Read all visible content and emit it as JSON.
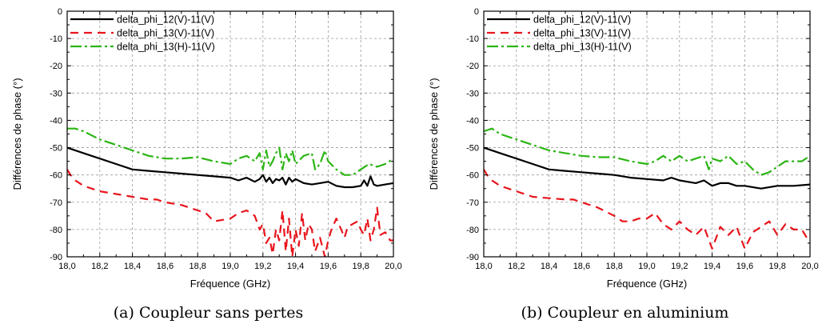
{
  "chart_data": [
    {
      "type": "line",
      "caption": "(a) Coupleur sans pertes",
      "xlabel": "Fréquence (GHz)",
      "ylabel": "Différences de phase (°)",
      "xlim": [
        18.0,
        20.0
      ],
      "ylim": [
        -90,
        0
      ],
      "x_ticks": [
        "18,0",
        "18,2",
        "18,4",
        "18,6",
        "18,8",
        "19,0",
        "19,2",
        "19,4",
        "19,6",
        "19,8",
        "20,0"
      ],
      "y_ticks": [
        "0",
        "-10",
        "-20",
        "-30",
        "-40",
        "-50",
        "-60",
        "-70",
        "-80",
        "-90"
      ],
      "grid": true,
      "legend_position": "top-left",
      "series": [
        {
          "name": "delta_phi_12(V)-11(V)",
          "color": "#000000",
          "dash": "solid",
          "x": [
            18.0,
            18.1,
            18.2,
            18.3,
            18.4,
            18.5,
            18.6,
            18.7,
            18.8,
            18.9,
            19.0,
            19.05,
            19.1,
            19.15,
            19.18,
            19.2,
            19.22,
            19.24,
            19.26,
            19.28,
            19.3,
            19.32,
            19.34,
            19.36,
            19.38,
            19.4,
            19.45,
            19.5,
            19.55,
            19.6,
            19.65,
            19.7,
            19.75,
            19.8,
            19.82,
            19.84,
            19.86,
            19.88,
            19.9,
            19.95,
            20.0
          ],
          "y": [
            -50,
            -52,
            -54,
            -56,
            -58,
            -58.5,
            -59,
            -59.5,
            -60,
            -60.5,
            -61,
            -62,
            -61,
            -62.5,
            -61.5,
            -60,
            -62.5,
            -61,
            -63,
            -61.5,
            -62,
            -61,
            -63.5,
            -61,
            -62.5,
            -61.5,
            -63,
            -63.5,
            -63,
            -62.5,
            -64,
            -64.5,
            -64.5,
            -64,
            -62,
            -64,
            -60.5,
            -63.5,
            -64,
            -63.5,
            -63
          ]
        },
        {
          "name": "delta_phi_13(V)-11(V)",
          "color": "#e8141c",
          "dash": "10,7",
          "x": [
            18.0,
            18.02,
            18.05,
            18.1,
            18.15,
            18.2,
            18.3,
            18.4,
            18.5,
            18.55,
            18.6,
            18.7,
            18.8,
            18.85,
            18.9,
            18.95,
            19.0,
            19.05,
            19.1,
            19.15,
            19.18,
            19.2,
            19.22,
            19.24,
            19.26,
            19.28,
            19.3,
            19.32,
            19.34,
            19.36,
            19.38,
            19.4,
            19.42,
            19.44,
            19.46,
            19.48,
            19.5,
            19.52,
            19.55,
            19.58,
            19.6,
            19.62,
            19.65,
            19.68,
            19.7,
            19.72,
            19.75,
            19.78,
            19.8,
            19.82,
            19.84,
            19.86,
            19.88,
            19.9,
            19.92,
            19.95,
            19.98,
            20.0
          ],
          "y": [
            -58,
            -60,
            -62,
            -64,
            -65,
            -66,
            -67,
            -68,
            -69,
            -69,
            -70,
            -71,
            -73,
            -74,
            -77,
            -76.5,
            -76,
            -74,
            -73,
            -75,
            -80,
            -78,
            -85,
            -83,
            -89,
            -80,
            -84,
            -73,
            -88,
            -76,
            -90,
            -80,
            -86,
            -74,
            -84,
            -78,
            -80,
            -88,
            -83,
            -90,
            -84,
            -80,
            -76,
            -80,
            -83,
            -79,
            -78,
            -77,
            -80,
            -82,
            -76,
            -84,
            -80,
            -72,
            -82,
            -81,
            -84,
            -84
          ]
        },
        {
          "name": "delta_phi_13(H)-11(V)",
          "color": "#2bb514",
          "dash": "14,4,3,4",
          "x": [
            18.0,
            18.05,
            18.1,
            18.2,
            18.3,
            18.4,
            18.5,
            18.6,
            18.7,
            18.8,
            18.9,
            19.0,
            19.05,
            19.1,
            19.15,
            19.18,
            19.2,
            19.22,
            19.24,
            19.26,
            19.28,
            19.3,
            19.32,
            19.34,
            19.36,
            19.38,
            19.4,
            19.45,
            19.5,
            19.52,
            19.55,
            19.58,
            19.6,
            19.65,
            19.7,
            19.75,
            19.8,
            19.85,
            19.9,
            19.95,
            20.0
          ],
          "y": [
            -43,
            -43,
            -44,
            -47,
            -49,
            -51,
            -53,
            -54,
            -54,
            -53.5,
            -55,
            -56,
            -54,
            -53,
            -55,
            -52,
            -58,
            -51,
            -57,
            -55,
            -52,
            -50,
            -58,
            -52,
            -55,
            -51,
            -56,
            -53,
            -52,
            -58,
            -56,
            -51,
            -55,
            -58,
            -60,
            -60,
            -58,
            -56,
            -57,
            -56,
            -54
          ]
        }
      ]
    },
    {
      "type": "line",
      "caption": "(b) Coupleur en aluminium",
      "xlabel": "Fréquence (GHz)",
      "ylabel": "Différences de phase (°)",
      "xlim": [
        18.0,
        20.0
      ],
      "ylim": [
        -90,
        0
      ],
      "x_ticks": [
        "18,0",
        "18,2",
        "18,4",
        "18,6",
        "18,8",
        "19,0",
        "19,2",
        "19,4",
        "19,6",
        "19,8",
        "20,0"
      ],
      "y_ticks": [
        "0",
        "-10",
        "-20",
        "-30",
        "-40",
        "-50",
        "-60",
        "-70",
        "-80",
        "-90"
      ],
      "grid": true,
      "legend_position": "top-left",
      "series": [
        {
          "name": "delta_phi_12(V)-11(V)",
          "color": "#000000",
          "dash": "solid",
          "x": [
            18.0,
            18.1,
            18.2,
            18.3,
            18.4,
            18.5,
            18.6,
            18.7,
            18.8,
            18.9,
            19.0,
            19.1,
            19.15,
            19.2,
            19.3,
            19.35,
            19.4,
            19.45,
            19.5,
            19.55,
            19.6,
            19.7,
            19.8,
            19.9,
            20.0
          ],
          "y": [
            -50,
            -52,
            -54,
            -56,
            -58,
            -58.5,
            -59,
            -59.5,
            -60,
            -61,
            -61.5,
            -62,
            -61,
            -62,
            -63,
            -62,
            -64,
            -63,
            -63,
            -64,
            -64,
            -65,
            -64,
            -64,
            -63.5
          ]
        },
        {
          "name": "delta_phi_13(V)-11(V)",
          "color": "#e8141c",
          "dash": "10,7",
          "x": [
            18.0,
            18.02,
            18.05,
            18.1,
            18.15,
            18.2,
            18.3,
            18.4,
            18.5,
            18.55,
            18.6,
            18.7,
            18.8,
            18.85,
            18.9,
            18.95,
            19.0,
            19.05,
            19.1,
            19.15,
            19.2,
            19.25,
            19.3,
            19.35,
            19.4,
            19.45,
            19.5,
            19.55,
            19.6,
            19.65,
            19.7,
            19.75,
            19.8,
            19.85,
            19.9,
            19.95,
            20.0
          ],
          "y": [
            -58,
            -60,
            -62,
            -64,
            -65,
            -66,
            -68,
            -68.5,
            -69,
            -69,
            -70,
            -72,
            -75,
            -77,
            -77,
            -76,
            -76,
            -74,
            -78,
            -80,
            -77,
            -80,
            -82,
            -79,
            -87,
            -79,
            -82,
            -79,
            -87,
            -81,
            -79,
            -77,
            -82,
            -78,
            -80,
            -80,
            -85
          ]
        },
        {
          "name": "delta_phi_13(H)-11(V)",
          "color": "#2bb514",
          "dash": "14,4,3,4",
          "x": [
            18.0,
            18.05,
            18.1,
            18.2,
            18.3,
            18.4,
            18.5,
            18.6,
            18.7,
            18.8,
            18.9,
            19.0,
            19.05,
            19.1,
            19.15,
            19.2,
            19.25,
            19.3,
            19.35,
            19.38,
            19.4,
            19.45,
            19.5,
            19.55,
            19.6,
            19.65,
            19.7,
            19.75,
            19.8,
            19.85,
            19.9,
            19.95,
            20.0
          ],
          "y": [
            -44,
            -43,
            -45,
            -47,
            -49,
            -51,
            -52,
            -53,
            -53.5,
            -53.5,
            -55,
            -56,
            -55,
            -53,
            -55,
            -53,
            -55,
            -54,
            -53,
            -58,
            -54,
            -55,
            -53,
            -56,
            -55,
            -58,
            -60,
            -59,
            -57,
            -55,
            -55,
            -55,
            -53
          ]
        }
      ]
    }
  ]
}
